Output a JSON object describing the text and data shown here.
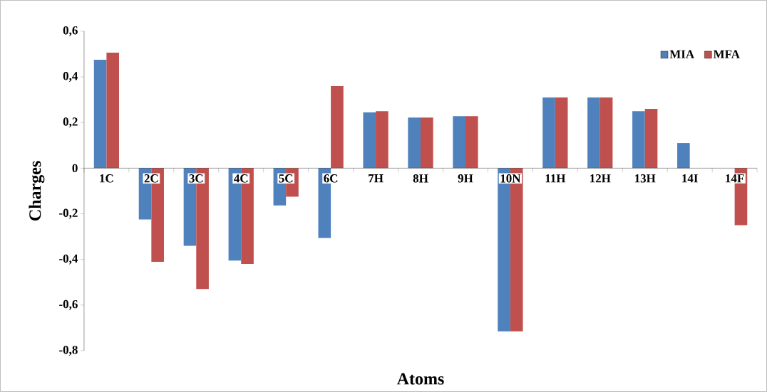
{
  "chart_data": {
    "type": "bar",
    "xlabel": "Atoms",
    "ylabel": "Charges",
    "categories": [
      "1C",
      "2C",
      "3C",
      "4C",
      "5C",
      "6C",
      "7H",
      "8H",
      "9H",
      "10N",
      "11H",
      "12H",
      "13H",
      "14I",
      "14F"
    ],
    "series": [
      {
        "name": "MIA",
        "color": "#4f81bd",
        "values": [
          0.475,
          -0.225,
          -0.34,
          -0.405,
          -0.163,
          -0.306,
          0.244,
          0.222,
          0.228,
          -0.715,
          0.31,
          0.31,
          0.25,
          0.11,
          null
        ]
      },
      {
        "name": "MFA",
        "color": "#c0504d",
        "values": [
          0.506,
          -0.41,
          -0.53,
          -0.42,
          -0.125,
          0.36,
          0.25,
          0.222,
          0.228,
          -0.715,
          0.31,
          0.31,
          0.26,
          null,
          -0.25
        ]
      }
    ],
    "ylim": [
      -0.8,
      0.6
    ],
    "yticks": [
      {
        "value": -0.8,
        "label": "-0,8"
      },
      {
        "value": -0.6,
        "label": "-0,6"
      },
      {
        "value": -0.4,
        "label": "-0,4"
      },
      {
        "value": -0.2,
        "label": "-0,2"
      },
      0,
      {
        "value": 0.2,
        "label": "0,2"
      },
      {
        "value": 0.4,
        "label": "0,4"
      },
      {
        "value": 0.6,
        "label": "0,6"
      }
    ],
    "legend": "top right"
  }
}
